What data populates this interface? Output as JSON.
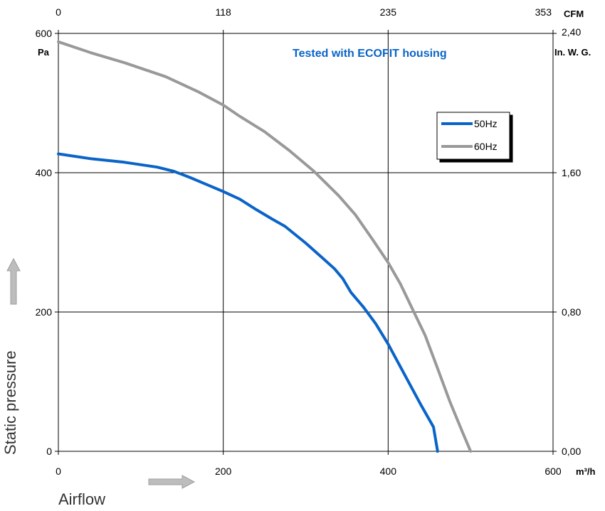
{
  "chart_data": {
    "type": "line",
    "annotation": "Tested with ECOFIT housing",
    "xlabel": "Airflow",
    "ylabel": "Static pressure",
    "x_unit": "m³/h",
    "y_unit": "Pa",
    "x_top_unit": "CFM",
    "y_right_unit": "In. W. G.",
    "xlim": [
      0,
      600
    ],
    "ylim": [
      0,
      600
    ],
    "x_ticks": [
      "0",
      "200",
      "400",
      "600"
    ],
    "y_ticks": [
      "0",
      "200",
      "400",
      "600"
    ],
    "x_top_ticks": [
      "0",
      "118",
      "235",
      "353"
    ],
    "y_right_ticks": [
      "0,00",
      "0,80",
      "1,60",
      "2,40"
    ],
    "grid": true,
    "legend_position": "top-right",
    "series": [
      {
        "name": "50Hz",
        "color": "#0a64c8",
        "x": [
          0,
          40,
          80,
          120,
          140,
          160,
          180,
          200,
          220,
          240,
          260,
          275,
          300,
          320,
          335,
          345,
          355,
          370,
          385,
          400,
          420,
          440,
          455,
          460
        ],
        "y": [
          427,
          420,
          415,
          408,
          402,
          393,
          383,
          373,
          362,
          347,
          333,
          323,
          299,
          278,
          262,
          248,
          228,
          207,
          183,
          154,
          110,
          66,
          35,
          0
        ]
      },
      {
        "name": "60Hz",
        "color": "#999999",
        "x": [
          0,
          40,
          80,
          130,
          170,
          200,
          220,
          250,
          280,
          310,
          340,
          360,
          380,
          400,
          415,
          430,
          445,
          460,
          475,
          490,
          500
        ],
        "y": [
          588,
          572,
          558,
          538,
          516,
          497,
          481,
          459,
          432,
          402,
          367,
          340,
          306,
          271,
          240,
          203,
          166,
          119,
          71,
          28,
          0
        ]
      }
    ]
  }
}
